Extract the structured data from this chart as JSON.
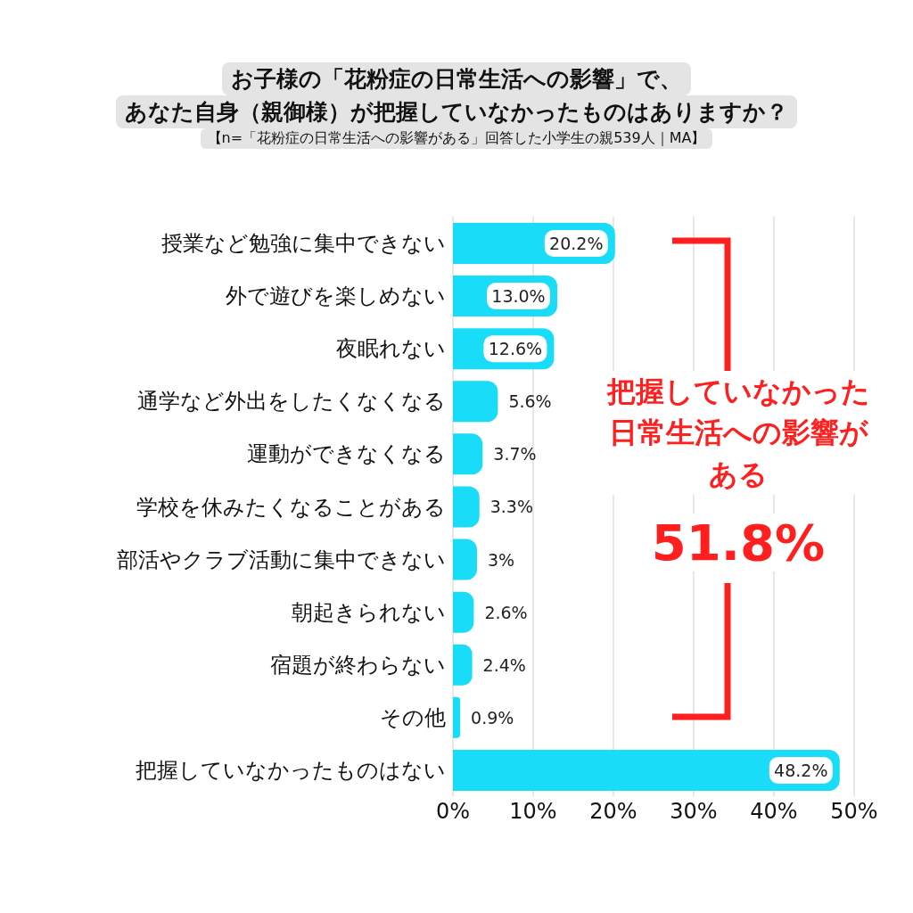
{
  "chart_data": {
    "type": "bar",
    "orientation": "horizontal",
    "title": "お子様の「花粉症の日常生活への影響」で、あなた自身（親御様）が把握していなかったものはありますか？",
    "subtitle": "【n=「花粉症の日常生活への影響がある」回答した小学生の親539人｜MA】",
    "categories": [
      "授業など勉強に集中できない",
      "外で遊びを楽しめない",
      "夜眠れない",
      "通学など外出をしたくなくなる",
      "運動ができなくなる",
      "学校を休みたくなることがある",
      "部活やクラブ活動に集中できない",
      "朝起きられない",
      "宿題が終わらない",
      "その他",
      "把握していなかったものはない"
    ],
    "values": [
      20.2,
      13.0,
      12.6,
      5.6,
      3.7,
      3.3,
      3,
      2.6,
      2.4,
      0.9,
      48.2
    ],
    "value_labels": [
      "20.2%",
      "13.0%",
      "12.6%",
      "5.6%",
      "3.7%",
      "3.3%",
      "3%",
      "2.6%",
      "2.4%",
      "0.9%",
      "48.2%"
    ],
    "color": "#18dcf8",
    "xlim": [
      0,
      50
    ],
    "xticks": [
      {
        "value": 0,
        "label": "0%"
      },
      {
        "value": 10,
        "label": "10%"
      },
      {
        "value": 20,
        "label": "20%"
      },
      {
        "value": 30,
        "label": "30%"
      },
      {
        "value": 40,
        "label": "40%"
      },
      {
        "value": 50,
        "label": "50%"
      }
    ],
    "grid": "x",
    "annotations": [
      "把握していなかった日常生活への影響がある",
      "51.8%"
    ]
  }
}
